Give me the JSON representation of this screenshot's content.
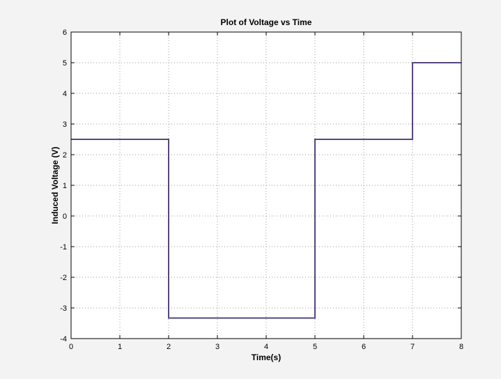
{
  "colors": {
    "figure_background": "#f3f3f3",
    "axes_background": "#ffffff",
    "line": "#55467f",
    "grid": "#9a9a9a",
    "text": "#000000"
  },
  "chart_data": {
    "type": "line",
    "step": true,
    "title": "Plot of Voltage vs Time",
    "xlabel": "Time(s)",
    "ylabel": "Induced Voltage (V)",
    "xlim": [
      0,
      8
    ],
    "ylim": [
      -4,
      6
    ],
    "xticks": [
      0,
      1,
      2,
      3,
      4,
      5,
      6,
      7,
      8
    ],
    "yticks": [
      -4,
      -3,
      -2,
      -1,
      0,
      1,
      2,
      3,
      4,
      5,
      6
    ],
    "grid": true,
    "legend": false,
    "series": [
      {
        "x": [
          0,
          2,
          2,
          5,
          5,
          7,
          7,
          8
        ],
        "y": [
          2.5,
          2.5,
          -3.33,
          -3.33,
          2.5,
          2.5,
          5,
          5
        ]
      }
    ]
  }
}
